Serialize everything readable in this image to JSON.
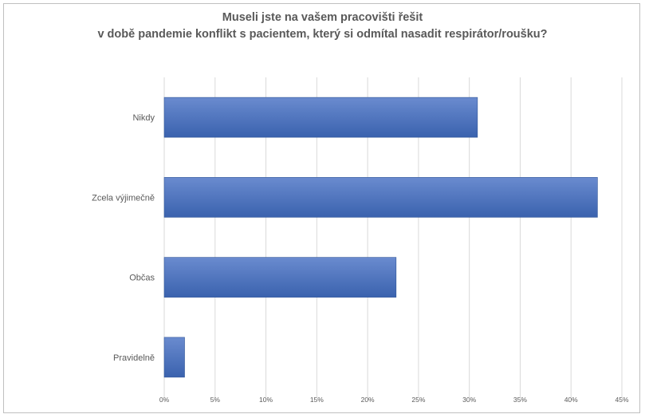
{
  "chart_data": {
    "type": "bar",
    "orientation": "horizontal",
    "title_line1": "Museli jste na vašem pracovišti řešit",
    "title_line2": "v době pandemie konflikt s pacientem, který si odmítal nasadit respirátor/roušku?",
    "categories": [
      "Nikdy",
      "Zcela výjimečně",
      "Občas",
      "Pravidelně"
    ],
    "values": [
      30.8,
      42.6,
      22.8,
      2.0
    ],
    "value_unit": "%",
    "xlim": [
      0,
      45
    ],
    "x_ticks": [
      0,
      5,
      10,
      15,
      20,
      25,
      30,
      35,
      40,
      45
    ],
    "x_tick_labels": [
      "0%",
      "5%",
      "10%",
      "15%",
      "20%",
      "25%",
      "30%",
      "35%",
      "40%",
      "45%"
    ],
    "grid": "vertical",
    "legend": "none",
    "colors": {
      "bar_top": "#6a8bcf",
      "bar_bottom": "#3a62ae",
      "bar_border": "#2f5597",
      "grid": "#d9d9d9",
      "text": "#595959"
    }
  }
}
